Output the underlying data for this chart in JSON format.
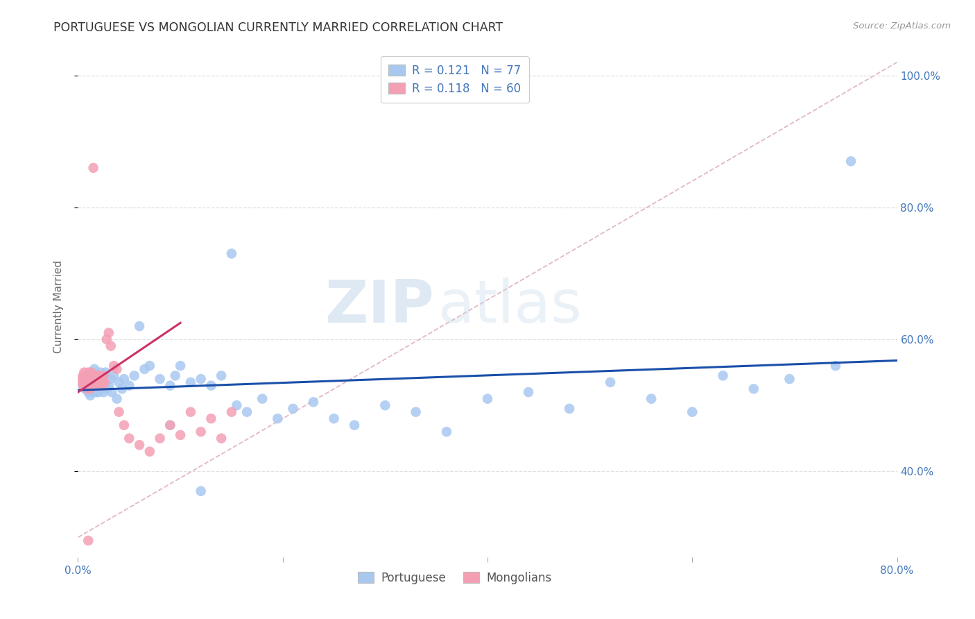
{
  "title": "PORTUGUESE VS MONGOLIAN CURRENTLY MARRIED CORRELATION CHART",
  "source": "Source: ZipAtlas.com",
  "ylabel": "Currently Married",
  "xlim": [
    0.0,
    0.8
  ],
  "ylim": [
    0.27,
    1.03
  ],
  "ytick_labels": [
    "40.0%",
    "60.0%",
    "80.0%",
    "100.0%"
  ],
  "ytick_values": [
    0.4,
    0.6,
    0.8,
    1.0
  ],
  "xtick_values": [
    0.0,
    0.2,
    0.4,
    0.6,
    0.8
  ],
  "portuguese_R": 0.121,
  "portuguese_N": 77,
  "mongolian_R": 0.118,
  "mongolian_N": 60,
  "blue_color": "#a8c8f0",
  "pink_color": "#f4a0b4",
  "blue_line_color": "#1a4faa",
  "pink_line_color": "#cc3366",
  "diagonal_color": "#e0b8c8",
  "background_color": "#ffffff",
  "grid_color": "#e0e0e0",
  "watermark_zip": "ZIP",
  "watermark_atlas": "atlas",
  "port_x": [
    0.005,
    0.007,
    0.008,
    0.009,
    0.01,
    0.01,
    0.011,
    0.012,
    0.012,
    0.013,
    0.013,
    0.014,
    0.015,
    0.015,
    0.016,
    0.016,
    0.017,
    0.018,
    0.018,
    0.019,
    0.02,
    0.02,
    0.021,
    0.022,
    0.022,
    0.023,
    0.024,
    0.025,
    0.026,
    0.027,
    0.028,
    0.03,
    0.032,
    0.033,
    0.035,
    0.038,
    0.04,
    0.043,
    0.045,
    0.05,
    0.055,
    0.06,
    0.065,
    0.07,
    0.08,
    0.09,
    0.095,
    0.1,
    0.11,
    0.12,
    0.13,
    0.14,
    0.155,
    0.165,
    0.18,
    0.195,
    0.21,
    0.23,
    0.25,
    0.27,
    0.3,
    0.33,
    0.36,
    0.4,
    0.44,
    0.48,
    0.52,
    0.56,
    0.6,
    0.63,
    0.66,
    0.695,
    0.74,
    0.755,
    0.15,
    0.09,
    0.12
  ],
  "port_y": [
    0.53,
    0.525,
    0.54,
    0.535,
    0.52,
    0.545,
    0.53,
    0.515,
    0.54,
    0.525,
    0.55,
    0.535,
    0.52,
    0.545,
    0.53,
    0.555,
    0.54,
    0.52,
    0.53,
    0.545,
    0.535,
    0.52,
    0.54,
    0.525,
    0.55,
    0.53,
    0.545,
    0.52,
    0.535,
    0.55,
    0.525,
    0.53,
    0.54,
    0.52,
    0.545,
    0.51,
    0.535,
    0.525,
    0.54,
    0.53,
    0.545,
    0.62,
    0.555,
    0.56,
    0.54,
    0.53,
    0.545,
    0.56,
    0.535,
    0.54,
    0.53,
    0.545,
    0.5,
    0.49,
    0.51,
    0.48,
    0.495,
    0.505,
    0.48,
    0.47,
    0.5,
    0.49,
    0.46,
    0.51,
    0.52,
    0.495,
    0.535,
    0.51,
    0.49,
    0.545,
    0.525,
    0.54,
    0.56,
    0.87,
    0.73,
    0.47,
    0.37
  ],
  "mong_x": [
    0.003,
    0.004,
    0.005,
    0.005,
    0.006,
    0.006,
    0.007,
    0.007,
    0.008,
    0.008,
    0.009,
    0.009,
    0.01,
    0.01,
    0.011,
    0.011,
    0.012,
    0.012,
    0.013,
    0.013,
    0.014,
    0.014,
    0.015,
    0.015,
    0.016,
    0.016,
    0.017,
    0.017,
    0.018,
    0.018,
    0.019,
    0.019,
    0.02,
    0.02,
    0.021,
    0.022,
    0.023,
    0.024,
    0.025,
    0.026,
    0.028,
    0.03,
    0.032,
    0.035,
    0.038,
    0.04,
    0.045,
    0.05,
    0.06,
    0.07,
    0.08,
    0.09,
    0.1,
    0.11,
    0.12,
    0.13,
    0.14,
    0.15,
    0.015,
    0.01
  ],
  "mong_y": [
    0.54,
    0.535,
    0.53,
    0.545,
    0.54,
    0.55,
    0.535,
    0.545,
    0.53,
    0.54,
    0.525,
    0.545,
    0.535,
    0.55,
    0.53,
    0.54,
    0.525,
    0.545,
    0.535,
    0.55,
    0.54,
    0.53,
    0.535,
    0.545,
    0.53,
    0.54,
    0.535,
    0.545,
    0.53,
    0.54,
    0.545,
    0.535,
    0.53,
    0.54,
    0.545,
    0.535,
    0.54,
    0.53,
    0.545,
    0.535,
    0.6,
    0.61,
    0.59,
    0.56,
    0.555,
    0.49,
    0.47,
    0.45,
    0.44,
    0.43,
    0.45,
    0.47,
    0.455,
    0.49,
    0.46,
    0.48,
    0.45,
    0.49,
    0.86,
    0.295
  ]
}
